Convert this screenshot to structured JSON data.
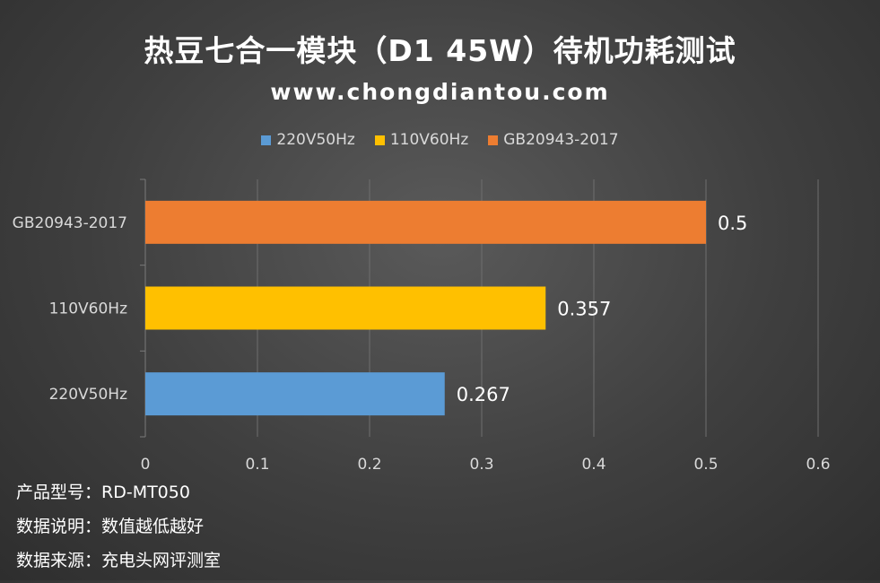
{
  "title": "热豆七合一模块（D1 45W）待机功耗测试",
  "subtitle": "www.chongdiantou.com",
  "notes": {
    "model": "产品型号：RD-MT050",
    "desc": "数据说明：数值越低越好",
    "source": "数据来源：充电头网评测室"
  },
  "chart_data": {
    "type": "bar",
    "orientation": "horizontal",
    "categories": [
      "220V50Hz",
      "110V60Hz",
      "GB20943-2017"
    ],
    "values": [
      0.267,
      0.357,
      0.5
    ],
    "data_labels": [
      "0.267",
      "0.357",
      "0.5"
    ],
    "colors": [
      "#5b9bd5",
      "#ffc000",
      "#ed7d31"
    ],
    "xlim": [
      0,
      0.6
    ],
    "xticks": [
      0,
      0.1,
      0.2,
      0.3,
      0.4,
      0.5,
      0.6
    ],
    "xtick_labels": [
      "0",
      "0.1",
      "0.2",
      "0.3",
      "0.4",
      "0.5",
      "0.6"
    ],
    "grid": true,
    "legend": {
      "position": "top",
      "entries": [
        {
          "label": "220V50Hz",
          "color": "#5b9bd5"
        },
        {
          "label": "110V60Hz",
          "color": "#ffc000"
        },
        {
          "label": "GB20943-2017",
          "color": "#ed7d31"
        }
      ]
    }
  }
}
